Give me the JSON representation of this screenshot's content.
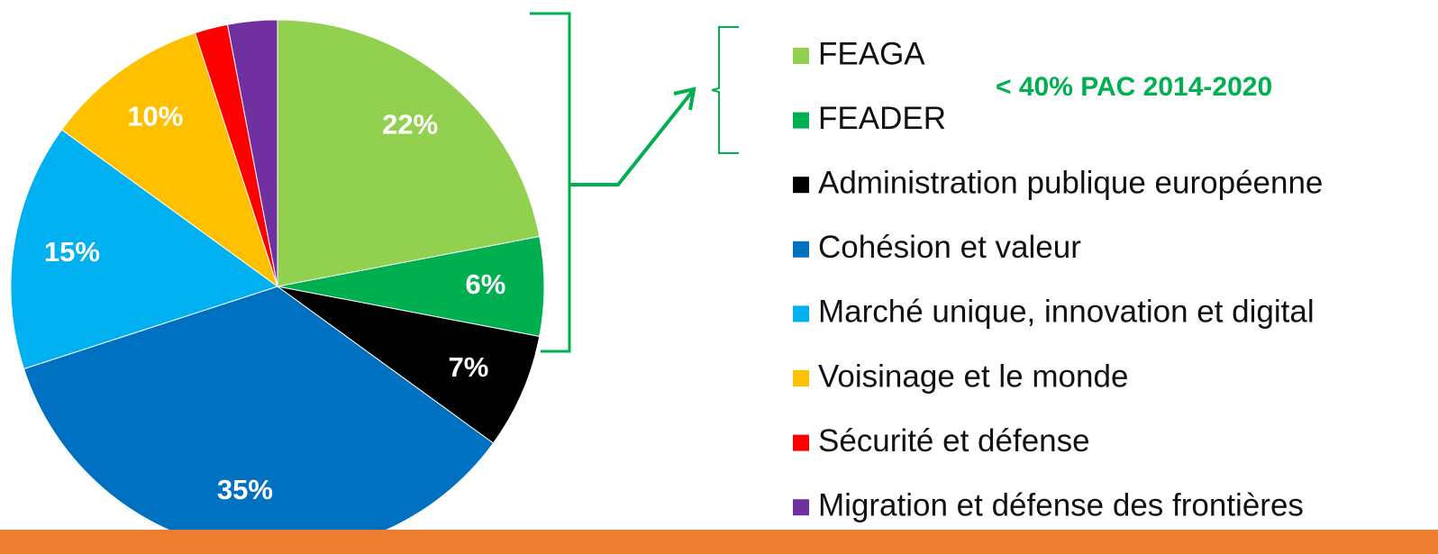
{
  "chart_data": {
    "type": "pie",
    "categories": [
      "FEAGA",
      "FEADER",
      "Administration publique européenne",
      "Cohésion et valeur",
      "Marché unique, innovation et digital",
      "Voisinage et le monde",
      "Sécurité et défense",
      "Migration et défense des frontières"
    ],
    "values": [
      22,
      6,
      7,
      35,
      15,
      10,
      2,
      3
    ],
    "value_labels": [
      "22%",
      "6%",
      "7%",
      "35%",
      "15%",
      "10%",
      null,
      null
    ],
    "colors": [
      "#92d050",
      "#00b050",
      "#000000",
      "#0070c0",
      "#00b0f0",
      "#ffc000",
      "#ff0000",
      "#7030a0"
    ],
    "annotation": "< 40% PAC 2014-2020"
  }
}
